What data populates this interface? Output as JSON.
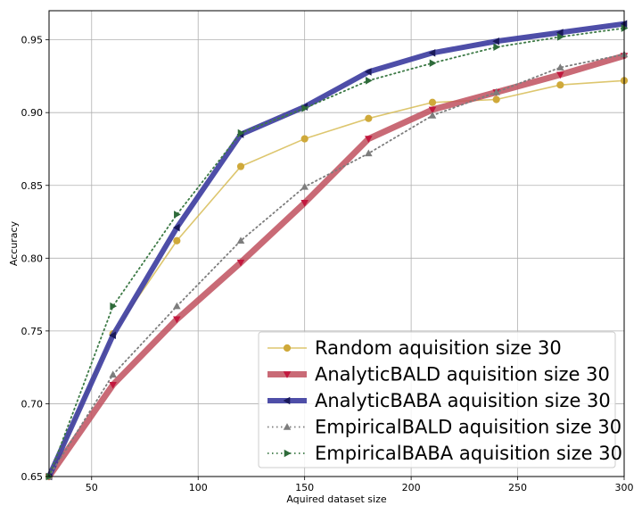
{
  "chart_data": {
    "type": "line",
    "xlabel": "Aquired dataset size",
    "ylabel": "Accuracy",
    "xlim": [
      30,
      300
    ],
    "ylim": [
      0.65,
      0.97
    ],
    "x_ticks": [
      50,
      100,
      150,
      200,
      250,
      300
    ],
    "y_ticks": [
      0.65,
      0.7,
      0.75,
      0.8,
      0.85,
      0.9,
      0.95
    ],
    "x_tick_labels": [
      "50",
      "100",
      "150",
      "200",
      "250",
      "300"
    ],
    "y_tick_labels": [
      "0.65",
      "0.70",
      "0.75",
      "0.80",
      "0.85",
      "0.90",
      "0.95"
    ],
    "grid": true,
    "legend_position": "bottom-right",
    "x": [
      30,
      60,
      90,
      120,
      150,
      180,
      210,
      240,
      270,
      300
    ],
    "series": [
      {
        "name": "Random aquisition size 30",
        "values": [
          0.65,
          0.748,
          0.812,
          0.863,
          0.882,
          0.896,
          0.907,
          0.909,
          0.919,
          0.922
        ],
        "color": "#d4b84a",
        "line_style": "solid",
        "marker": "circle"
      },
      {
        "name": "AnalyticBALD aquisition size 30",
        "values": [
          0.65,
          0.713,
          0.758,
          0.797,
          0.838,
          0.882,
          0.902,
          0.914,
          0.926,
          0.939
        ],
        "color": "#c0505e",
        "line_style": "solid",
        "marker": "triangle-down"
      },
      {
        "name": "AnalyticBABA aquisition size 30",
        "values": [
          0.65,
          0.747,
          0.821,
          0.885,
          0.904,
          0.928,
          0.941,
          0.949,
          0.955,
          0.961
        ],
        "color": "#3b3b9e",
        "line_style": "solid",
        "marker": "triangle-left"
      },
      {
        "name": "EmpiricalBALD aquisition size 30",
        "values": [
          0.65,
          0.72,
          0.767,
          0.812,
          0.849,
          0.872,
          0.898,
          0.914,
          0.931,
          0.94
        ],
        "color": "#7d7d7d",
        "line_style": "dotted",
        "marker": "triangle-up"
      },
      {
        "name": "EmpiricalBABA aquisition size 30",
        "values": [
          0.65,
          0.767,
          0.83,
          0.886,
          0.903,
          0.922,
          0.934,
          0.945,
          0.952,
          0.958
        ],
        "color": "#3d7a46",
        "line_style": "dotted",
        "marker": "triangle-right"
      }
    ]
  }
}
